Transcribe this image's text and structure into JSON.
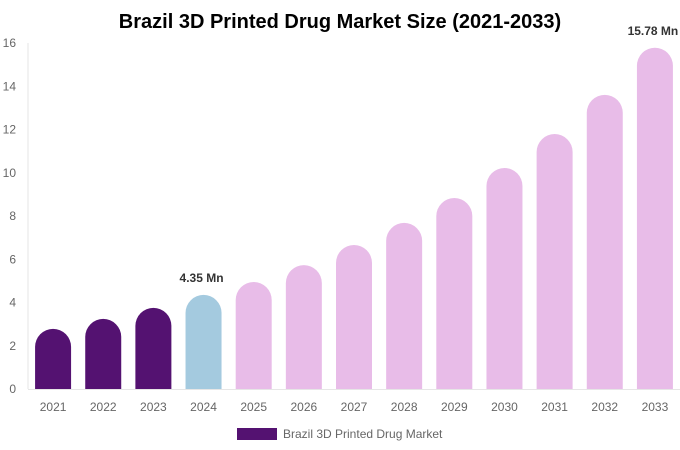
{
  "chart_data": {
    "type": "bar",
    "title": "Brazil 3D Printed Drug Market Size (2021-2033)",
    "categories": [
      "2021",
      "2022",
      "2023",
      "2024",
      "2025",
      "2026",
      "2027",
      "2028",
      "2029",
      "2030",
      "2031",
      "2032",
      "2033"
    ],
    "series": [
      {
        "name": "Brazil 3D Printed Drug Market",
        "values": [
          2.78,
          3.24,
          3.75,
          4.35,
          4.95,
          5.73,
          6.66,
          7.68,
          8.83,
          10.22,
          11.79,
          13.6,
          15.78
        ]
      }
    ],
    "data_labels": {
      "3": "4.35 Mn",
      "12": "15.78 Mn"
    },
    "ylim": [
      0,
      16
    ],
    "yticks": [
      0,
      2,
      4,
      6,
      8,
      10,
      12,
      14,
      16
    ],
    "grid": false,
    "legend_position": "bottom",
    "colors": {
      "historical": "#541271",
      "base_year": "#a4cadf",
      "forecast": "#e8bce8"
    },
    "xlabel": "",
    "ylabel": ""
  }
}
